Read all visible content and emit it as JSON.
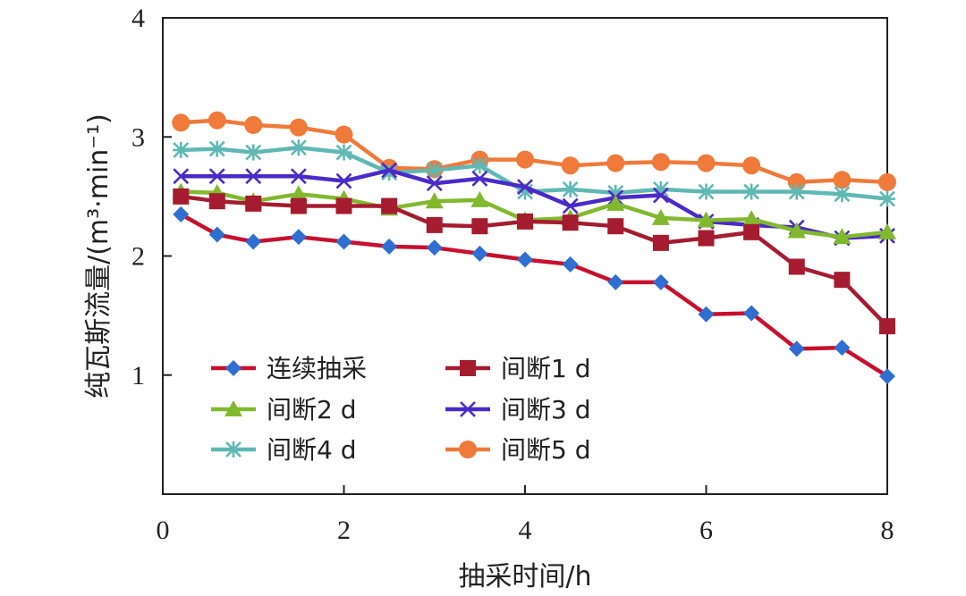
{
  "chart_data": {
    "type": "line",
    "title": "",
    "xlabel": "抽采时间/h",
    "ylabel": "纯瓦斯流量/(m³·min⁻¹)",
    "xlim": [
      0,
      8
    ],
    "ylim": [
      0,
      4
    ],
    "xticks": [
      "0",
      "2",
      "4",
      "6",
      "8"
    ],
    "yticks": [
      "1",
      "2",
      "3",
      "4"
    ],
    "grid": false,
    "legend_position": "bottom-left",
    "x": [
      0.2,
      0.6,
      1.0,
      1.5,
      2.0,
      2.5,
      3.0,
      3.5,
      4.0,
      4.5,
      5.0,
      5.5,
      6.0,
      6.5,
      7.0,
      7.5,
      8.0
    ],
    "series": [
      {
        "name": "连续抽采",
        "color": "#c8102e",
        "marker": "diamond-blue",
        "values": [
          2.35,
          2.18,
          2.12,
          2.16,
          2.12,
          2.08,
          2.07,
          2.02,
          1.97,
          1.93,
          1.78,
          1.78,
          1.51,
          1.52,
          1.22,
          1.23,
          0.99
        ]
      },
      {
        "name": "间断1 d",
        "color": "#a51c30",
        "marker": "square",
        "values": [
          2.5,
          2.46,
          2.44,
          2.42,
          2.42,
          2.42,
          2.26,
          2.25,
          2.29,
          2.28,
          2.25,
          2.11,
          2.15,
          2.2,
          1.91,
          1.8,
          1.41
        ]
      },
      {
        "name": "间断2 d",
        "color": "#82b82e",
        "marker": "triangle",
        "values": [
          2.54,
          2.53,
          2.46,
          2.52,
          2.48,
          2.4,
          2.46,
          2.47,
          2.3,
          2.32,
          2.44,
          2.32,
          2.3,
          2.31,
          2.21,
          2.16,
          2.2
        ]
      },
      {
        "name": "间断3 d",
        "color": "#4a2ac8",
        "marker": "star",
        "values": [
          2.67,
          2.67,
          2.67,
          2.67,
          2.63,
          2.72,
          2.61,
          2.65,
          2.58,
          2.42,
          2.49,
          2.51,
          2.29,
          2.26,
          2.24,
          2.15,
          2.17
        ]
      },
      {
        "name": "间断4 d",
        "color": "#5fb8b4",
        "marker": "asterisk",
        "values": [
          2.89,
          2.9,
          2.87,
          2.91,
          2.87,
          2.7,
          2.72,
          2.76,
          2.54,
          2.56,
          2.53,
          2.56,
          2.54,
          2.54,
          2.54,
          2.52,
          2.48
        ]
      },
      {
        "name": "间断5 d",
        "color": "#f07a3a",
        "marker": "circle",
        "values": [
          3.12,
          3.14,
          3.1,
          3.08,
          3.02,
          2.74,
          2.73,
          2.81,
          2.81,
          2.76,
          2.78,
          2.79,
          2.78,
          2.76,
          2.62,
          2.64,
          2.62
        ]
      }
    ]
  }
}
